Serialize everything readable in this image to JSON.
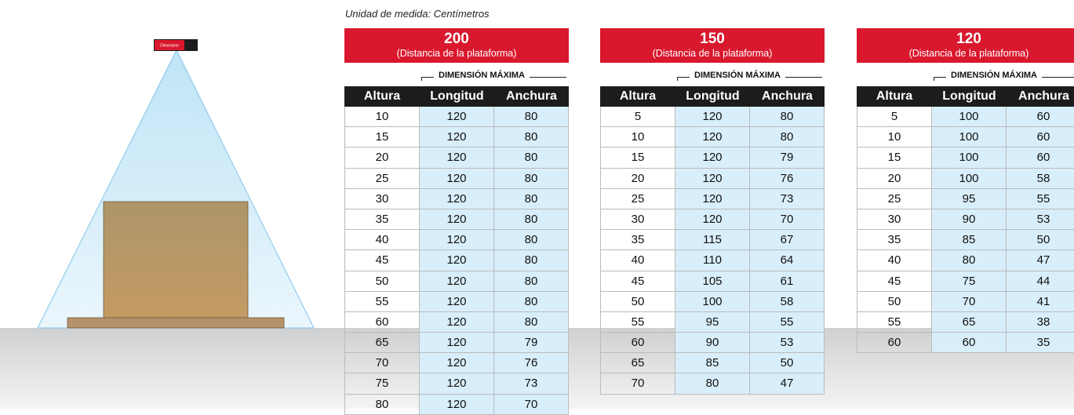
{
  "unit_note": "Unidad de medida: Centímetros",
  "device_label": "Dimension",
  "tables": [
    {
      "title": "200",
      "subtitle": "(Distancia de la plataforma)",
      "group_header": "DIMENSIÓN MÁXIMA",
      "columns": [
        "Altura",
        "Longitud",
        "Anchura"
      ],
      "rows": [
        [
          "10",
          "120",
          "80"
        ],
        [
          "15",
          "120",
          "80"
        ],
        [
          "20",
          "120",
          "80"
        ],
        [
          "25",
          "120",
          "80"
        ],
        [
          "30",
          "120",
          "80"
        ],
        [
          "35",
          "120",
          "80"
        ],
        [
          "40",
          "120",
          "80"
        ],
        [
          "45",
          "120",
          "80"
        ],
        [
          "50",
          "120",
          "80"
        ],
        [
          "55",
          "120",
          "80"
        ],
        [
          "60",
          "120",
          "80"
        ],
        [
          "65",
          "120",
          "79"
        ],
        [
          "70",
          "120",
          "76"
        ],
        [
          "75",
          "120",
          "73"
        ],
        [
          "80",
          "120",
          "70"
        ]
      ]
    },
    {
      "title": "150",
      "subtitle": "(Distancia de la plataforma)",
      "group_header": "DIMENSIÓN MÁXIMA",
      "columns": [
        "Altura",
        "Longitud",
        "Anchura"
      ],
      "rows": [
        [
          "5",
          "120",
          "80"
        ],
        [
          "10",
          "120",
          "80"
        ],
        [
          "15",
          "120",
          "79"
        ],
        [
          "20",
          "120",
          "76"
        ],
        [
          "25",
          "120",
          "73"
        ],
        [
          "30",
          "120",
          "70"
        ],
        [
          "35",
          "115",
          "67"
        ],
        [
          "40",
          "110",
          "64"
        ],
        [
          "45",
          "105",
          "61"
        ],
        [
          "50",
          "100",
          "58"
        ],
        [
          "55",
          "95",
          "55"
        ],
        [
          "60",
          "90",
          "53"
        ],
        [
          "65",
          "85",
          "50"
        ],
        [
          "70",
          "80",
          "47"
        ]
      ]
    },
    {
      "title": "120",
      "subtitle": "(Distancia de la plataforma)",
      "group_header": "DIMENSIÓN MÁXIMA",
      "columns": [
        "Altura",
        "Longitud",
        "Anchura"
      ],
      "rows": [
        [
          "5",
          "100",
          "60"
        ],
        [
          "10",
          "100",
          "60"
        ],
        [
          "15",
          "100",
          "60"
        ],
        [
          "20",
          "100",
          "58"
        ],
        [
          "25",
          "95",
          "55"
        ],
        [
          "30",
          "90",
          "53"
        ],
        [
          "35",
          "85",
          "50"
        ],
        [
          "40",
          "80",
          "47"
        ],
        [
          "45",
          "75",
          "44"
        ],
        [
          "50",
          "70",
          "41"
        ],
        [
          "55",
          "65",
          "38"
        ],
        [
          "60",
          "60",
          "35"
        ]
      ]
    }
  ]
}
